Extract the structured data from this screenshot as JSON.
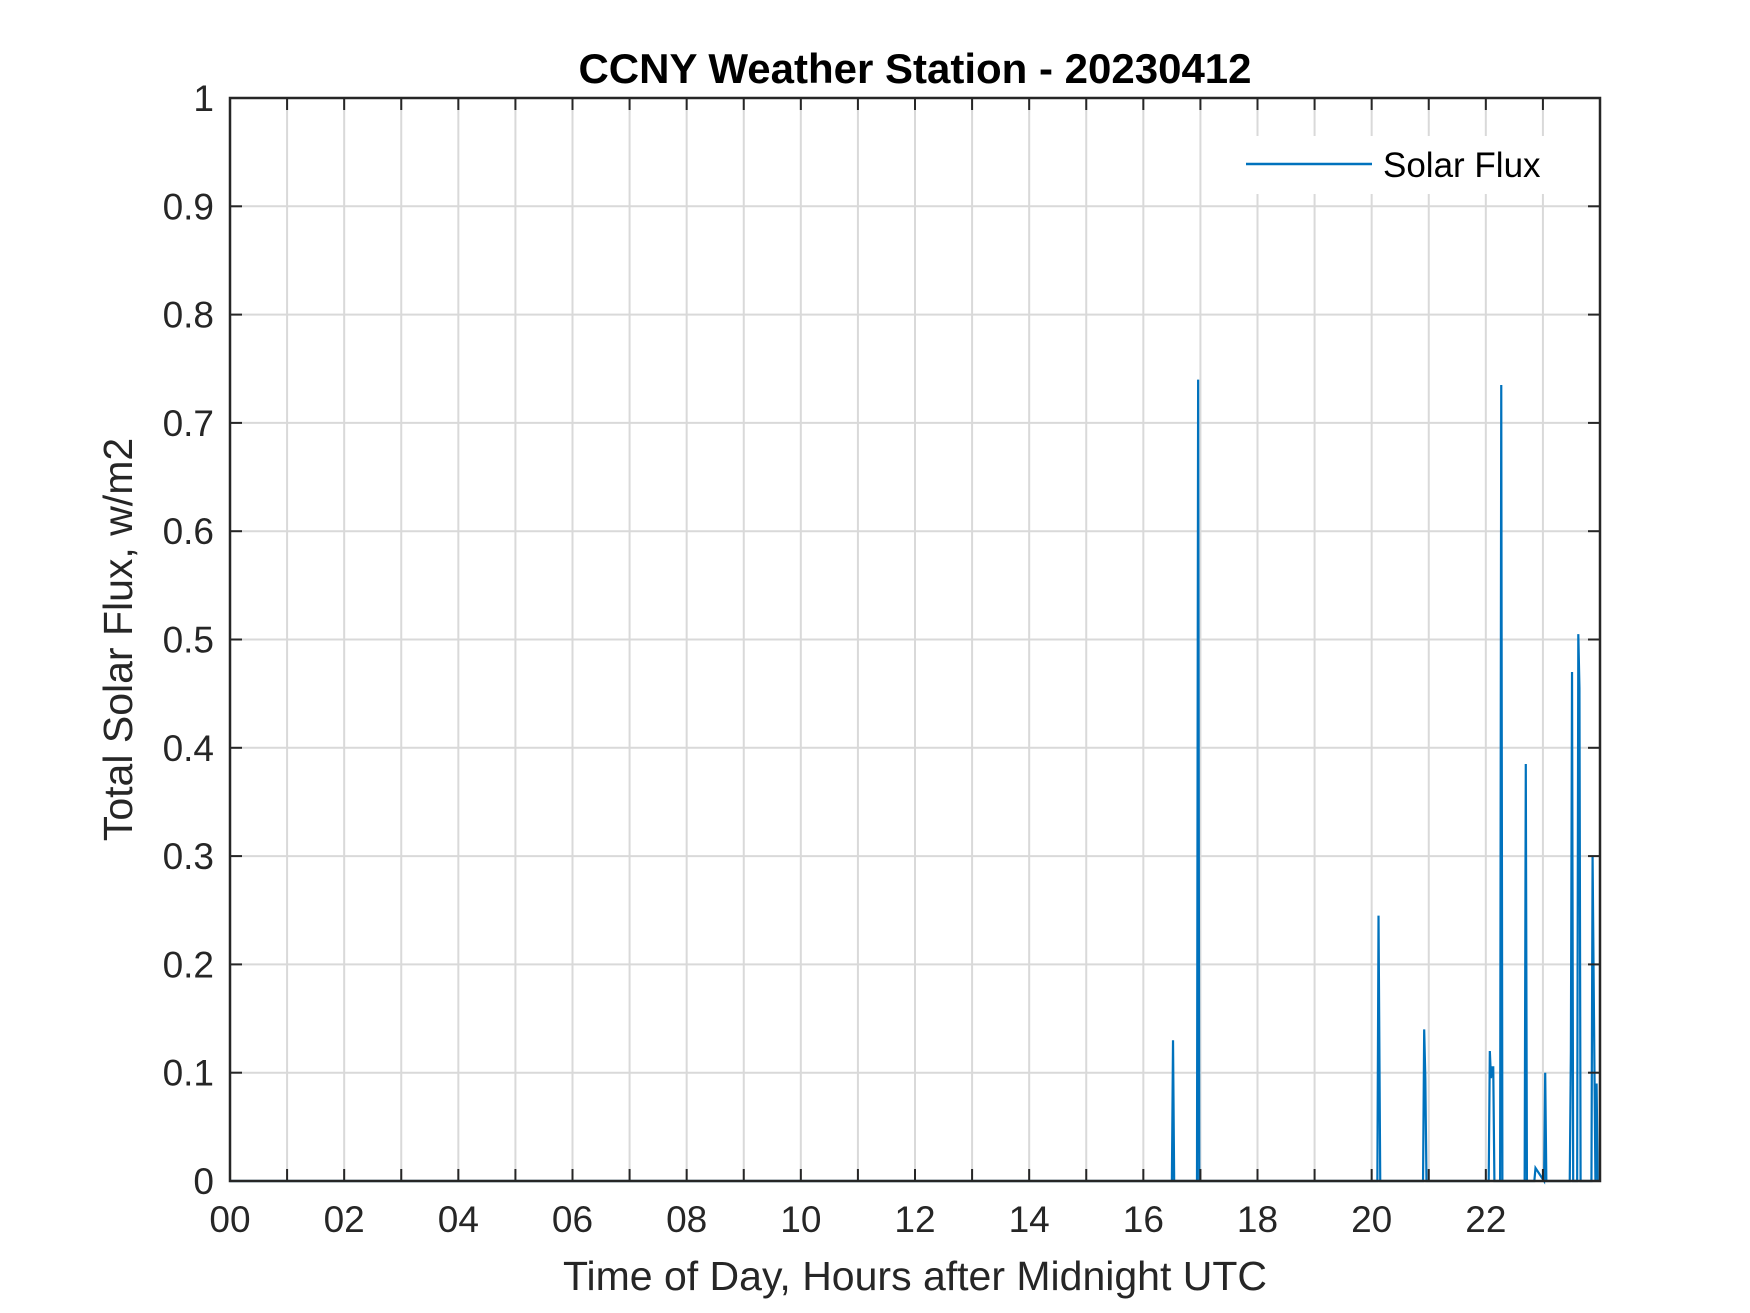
{
  "chart_data": {
    "type": "line",
    "title": "CCNY Weather Station - 20230412",
    "xlabel": "Time of Day, Hours after Midnight UTC",
    "ylabel": "Total Solar Flux, w/m2",
    "xlim": [
      0,
      24
    ],
    "ylim": [
      0,
      1
    ],
    "grid": true,
    "legend_location": "top-right",
    "x_ticks": [
      0,
      2,
      4,
      6,
      8,
      10,
      12,
      14,
      16,
      18,
      20,
      22
    ],
    "x_tick_labels": [
      "00",
      "02",
      "04",
      "06",
      "08",
      "10",
      "12",
      "14",
      "16",
      "18",
      "20",
      "22"
    ],
    "y_ticks": [
      0,
      0.1,
      0.2,
      0.3,
      0.4,
      0.5,
      0.6,
      0.7,
      0.8,
      0.9,
      1
    ],
    "y_tick_labels": [
      "0",
      "0.1",
      "0.2",
      "0.3",
      "0.4",
      "0.5",
      "0.6",
      "0.7",
      "0.8",
      "0.9",
      "1"
    ],
    "series": [
      {
        "name": "Solar Flux",
        "color": "#0072BD",
        "x": [
          0,
          16.5,
          16.52,
          16.54,
          16.94,
          16.96,
          16.98,
          20.1,
          20.12,
          20.15,
          20.9,
          20.92,
          20.94,
          20.96,
          22.05,
          22.07,
          22.09,
          22.11,
          22.13,
          22.15,
          22.25,
          22.27,
          22.29,
          22.68,
          22.7,
          22.72,
          22.85,
          22.87,
          23.02,
          23.04,
          23.06,
          23.47,
          23.49,
          23.51,
          23.53,
          23.6,
          23.62,
          23.64,
          23.66,
          23.68,
          23.85,
          23.87,
          23.92,
          23.94,
          23.96
        ],
        "y": [
          0,
          0,
          0.13,
          0,
          0,
          0.74,
          0,
          0,
          0.245,
          0,
          0,
          0.14,
          0.095,
          0,
          0,
          0.12,
          0.095,
          0.105,
          0.105,
          0,
          0,
          0.735,
          0,
          0,
          0.385,
          0,
          0,
          0.012,
          0,
          0.1,
          0,
          0,
          0.12,
          0.47,
          0,
          0,
          0.505,
          0.455,
          0,
          0,
          0,
          0.3,
          0,
          0.09,
          0
        ]
      }
    ]
  }
}
